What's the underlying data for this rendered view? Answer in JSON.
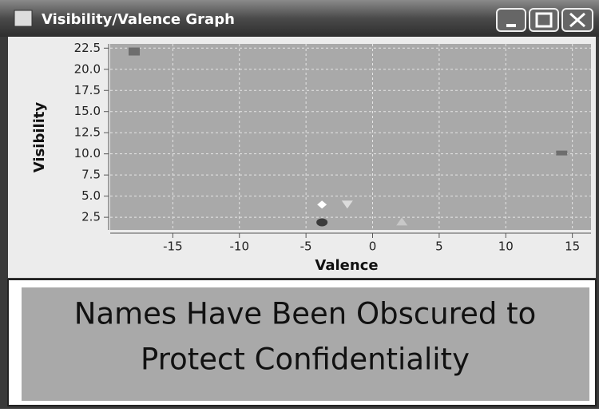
{
  "window": {
    "title": "Visibility/Valence Graph"
  },
  "chart_data": {
    "type": "scatter",
    "x_label": "Valence",
    "y_label": "Visibility",
    "xlim": [
      -19.7,
      16.4
    ],
    "ylim": [
      1.0,
      23.0
    ],
    "xticks": [
      -15,
      -10,
      -5,
      0,
      5,
      10,
      15
    ],
    "yticks": [
      2.5,
      {
        "value": 5,
        "label": "5.0"
      },
      7.5,
      {
        "value": 10,
        "label": "10.0"
      },
      12.5,
      {
        "value": 15,
        "label": "15.0"
      },
      17.5,
      {
        "value": 20,
        "label": "20.0"
      },
      22.5
    ],
    "grid": true,
    "series": [
      {
        "marker": "square",
        "color": "#6e6e6e",
        "x": [
          -17.9
        ],
        "values": [
          22.1
        ]
      },
      {
        "marker": "rect",
        "color": "#6e6e6e",
        "x": [
          14.2
        ],
        "values": [
          10.1
        ]
      },
      {
        "marker": "diamond",
        "color": "#ffffff",
        "x": [
          -3.8
        ],
        "values": [
          4.0
        ]
      },
      {
        "marker": "triangle-down",
        "color": "#dcdcdc",
        "x": [
          -1.9
        ],
        "values": [
          4.0
        ]
      },
      {
        "marker": "circle",
        "color": "#3c3c3c",
        "x": [
          -3.8
        ],
        "values": [
          1.9
        ]
      },
      {
        "marker": "triangle-up",
        "color": "#c8c8c8",
        "x": [
          2.2
        ],
        "values": [
          2.0
        ]
      }
    ]
  },
  "notice": {
    "lines": [
      "Names Have Been Obscured to",
      "Protect Confidentiality"
    ]
  }
}
